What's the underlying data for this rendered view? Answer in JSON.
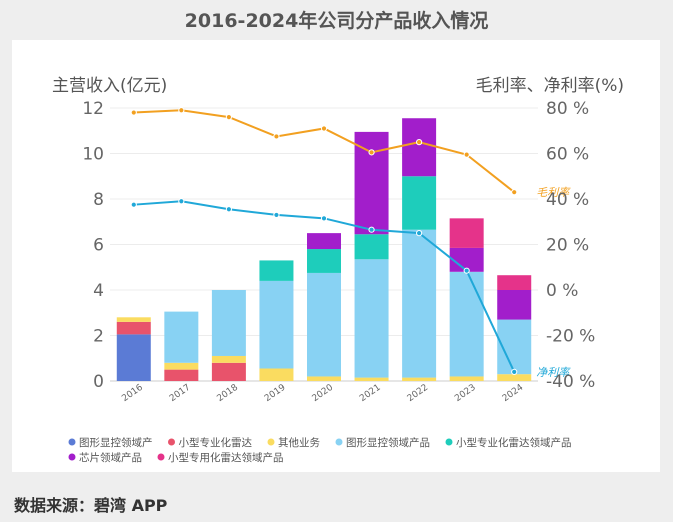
{
  "page": {
    "title": "2016-2024年公司分产品收入情况",
    "source": "数据来源：碧湾 APP"
  },
  "chart_data": {
    "type": "bar",
    "subtype": "stacked-bar-with-lines",
    "title": "2016-2024年公司分产品收入情况",
    "ylabel_left": "主营收入(亿元)",
    "ylabel_right": "毛利率、净利率(%)",
    "ylim_left": [
      0,
      12
    ],
    "ylim_right": [
      -40,
      80
    ],
    "yticks_left": [
      "0",
      "2",
      "4",
      "6",
      "8",
      "10",
      "12"
    ],
    "yticks_right": [
      "-40 %",
      "-20 %",
      "0 %",
      "20 %",
      "40 %",
      "60 %",
      "80 %"
    ],
    "categories": [
      "2016",
      "2017",
      "2018",
      "2019",
      "2020",
      "2021",
      "2022",
      "2023",
      "2024"
    ],
    "series": [
      {
        "name": "图形显控领域产",
        "color": "#5b7bd5",
        "values": [
          2.05,
          0,
          0,
          0,
          0,
          0,
          0,
          0,
          0
        ]
      },
      {
        "name": "小型专业化雷达",
        "color": "#e8536b",
        "values": [
          0.55,
          0.5,
          0.8,
          0,
          0,
          0,
          0,
          0,
          0
        ]
      },
      {
        "name": "其他业务",
        "color": "#fadc60",
        "values": [
          0.2,
          0.3,
          0.3,
          0.55,
          0.2,
          0.15,
          0.15,
          0.2,
          0.3
        ]
      },
      {
        "name": "图形显控领域产品",
        "color": "#88d2f3",
        "values": [
          0,
          2.25,
          2.9,
          3.85,
          4.55,
          5.2,
          6.5,
          4.6,
          2.4
        ]
      },
      {
        "name": "小型专业化雷达领域产品",
        "color": "#1ecdbb",
        "values": [
          0,
          0,
          0,
          0.9,
          1.05,
          1.1,
          2.35,
          0,
          0
        ]
      },
      {
        "name": "芯片领域产品",
        "color": "#a21ecb",
        "values": [
          0,
          0,
          0,
          0,
          0.7,
          4.5,
          2.55,
          1.05,
          1.3
        ]
      },
      {
        "name": "小型专用化雷达领域产品",
        "color": "#e5338a",
        "values": [
          0,
          0,
          0,
          0,
          0,
          0,
          0,
          1.3,
          0.65
        ]
      }
    ],
    "lines": [
      {
        "name": "毛利率",
        "color": "#f2a020",
        "values": [
          78,
          79,
          76,
          67.5,
          71,
          60.5,
          65,
          59.5,
          43
        ]
      },
      {
        "name": "净利率",
        "color": "#20a8d8",
        "values": [
          37.5,
          39,
          35.5,
          33,
          31.5,
          26.5,
          25,
          8.5,
          -36
        ]
      }
    ],
    "legend_position": "bottom",
    "grid": true
  }
}
